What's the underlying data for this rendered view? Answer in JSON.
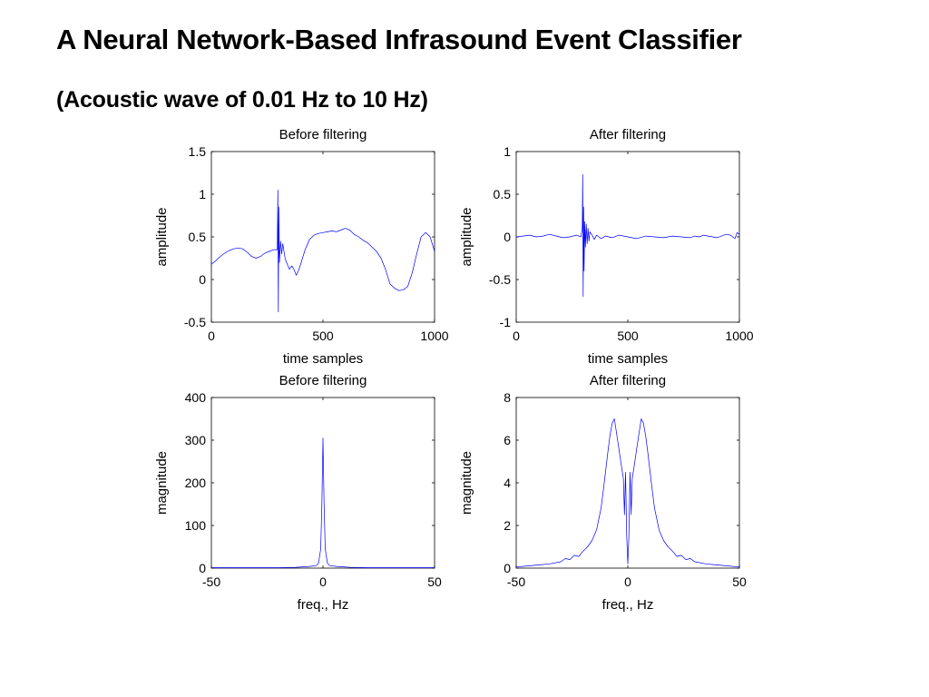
{
  "slide": {
    "title": "A Neural Network-Based Infrasound Event Classifier",
    "subtitle": "(Acoustic wave of 0.01 Hz to 10 Hz)"
  },
  "colors": {
    "trace": "#0000ff",
    "axes": "#000000",
    "background": "#ffffff"
  },
  "chart_data": [
    {
      "type": "line",
      "title": "Before filtering",
      "xlabel": "time samples",
      "ylabel": "amplitude",
      "xlim": [
        0,
        1000
      ],
      "ylim": [
        -0.5,
        1.5
      ],
      "xticks": [
        0,
        500,
        1000
      ],
      "yticks": [
        -0.5,
        0,
        0.5,
        1,
        1.5
      ],
      "ytick_labels": [
        "-0.5",
        "0",
        "0.5",
        "1",
        "1.5"
      ],
      "grid": false,
      "series": [
        {
          "x": [
            0,
            20,
            40,
            60,
            80,
            100,
            120,
            140,
            160,
            180,
            200,
            220,
            240,
            260,
            280,
            295,
            298,
            300,
            302,
            305,
            310,
            315,
            320,
            330,
            340,
            350,
            360,
            370,
            380,
            390,
            400,
            420,
            440,
            460,
            480,
            500,
            520,
            540,
            560,
            580,
            600,
            620,
            640,
            660,
            680,
            700,
            720,
            740,
            760,
            780,
            800,
            820,
            840,
            860,
            880,
            900,
            920,
            940,
            960,
            980,
            1000
          ],
          "y": [
            0.18,
            0.22,
            0.27,
            0.31,
            0.34,
            0.36,
            0.37,
            0.36,
            0.32,
            0.27,
            0.25,
            0.27,
            0.31,
            0.33,
            0.35,
            0.35,
            1.05,
            -0.38,
            0.85,
            0.2,
            0.45,
            0.3,
            0.42,
            0.25,
            0.18,
            0.12,
            0.16,
            0.12,
            0.05,
            0.1,
            0.18,
            0.35,
            0.47,
            0.52,
            0.54,
            0.55,
            0.56,
            0.57,
            0.56,
            0.58,
            0.6,
            0.58,
            0.53,
            0.5,
            0.46,
            0.43,
            0.38,
            0.33,
            0.25,
            0.12,
            -0.05,
            -0.1,
            -0.13,
            -0.12,
            -0.08,
            0.08,
            0.3,
            0.5,
            0.55,
            0.5,
            0.33
          ]
        }
      ]
    },
    {
      "type": "line",
      "title": "After filtering",
      "xlabel": "time samples",
      "ylabel": "amplitude",
      "xlim": [
        0,
        1000
      ],
      "ylim": [
        -1,
        1
      ],
      "xticks": [
        0,
        500,
        1000
      ],
      "yticks": [
        -1,
        -0.5,
        0,
        0.5,
        1
      ],
      "ytick_labels": [
        "-1",
        "-0.5",
        "0",
        "0.5",
        "1"
      ],
      "grid": false,
      "series": [
        {
          "x": [
            0,
            30,
            60,
            90,
            120,
            150,
            180,
            210,
            240,
            270,
            290,
            296,
            298,
            300,
            302,
            304,
            307,
            310,
            314,
            318,
            322,
            326,
            330,
            340,
            350,
            360,
            380,
            400,
            430,
            460,
            500,
            540,
            580,
            620,
            660,
            700,
            740,
            780,
            800,
            820,
            840,
            860,
            880,
            900,
            920,
            940,
            960,
            980,
            990,
            1000
          ],
          "y": [
            0.0,
            0.01,
            0.02,
            0.0,
            0.01,
            0.03,
            0.01,
            -0.01,
            0.0,
            0.02,
            0.0,
            0.1,
            0.73,
            -0.7,
            0.35,
            -0.4,
            0.18,
            -0.12,
            0.15,
            -0.08,
            0.1,
            -0.05,
            0.06,
            0.02,
            -0.03,
            0.02,
            -0.02,
            0.01,
            -0.01,
            0.02,
            0.0,
            -0.02,
            0.01,
            0.0,
            -0.01,
            0.01,
            0.0,
            -0.01,
            0.01,
            0.0,
            0.02,
            0.01,
            0.0,
            -0.01,
            0.01,
            0.03,
            0.02,
            -0.02,
            0.05,
            0.03
          ]
        }
      ]
    },
    {
      "type": "line",
      "title": "Before filtering",
      "xlabel": "freq., Hz",
      "ylabel": "magnitude",
      "xlim": [
        -50,
        50
      ],
      "ylim": [
        0,
        400
      ],
      "xticks": [
        -50,
        0,
        50
      ],
      "yticks": [
        0,
        100,
        200,
        300,
        400
      ],
      "ytick_labels": [
        "0",
        "100",
        "200",
        "300",
        "400"
      ],
      "grid": false,
      "series": [
        {
          "x": [
            -50,
            -40,
            -30,
            -20,
            -12,
            -6,
            -3,
            -2,
            -1,
            -0.5,
            0,
            0.5,
            1,
            2,
            3,
            6,
            12,
            20,
            30,
            40,
            50
          ],
          "y": [
            1,
            1,
            1,
            1,
            2,
            4,
            6,
            12,
            45,
            150,
            305,
            150,
            45,
            12,
            6,
            4,
            2,
            1,
            1,
            1,
            1
          ]
        }
      ]
    },
    {
      "type": "line",
      "title": "After filtering",
      "xlabel": "freq., Hz",
      "ylabel": "magnitude",
      "xlim": [
        -50,
        50
      ],
      "ylim": [
        0,
        8
      ],
      "xticks": [
        -50,
        0,
        50
      ],
      "yticks": [
        0,
        2,
        4,
        6,
        8
      ],
      "ytick_labels": [
        "0",
        "2",
        "4",
        "6",
        "8"
      ],
      "grid": false,
      "series": [
        {
          "x": [
            -50,
            -45,
            -40,
            -35,
            -30,
            -28,
            -26,
            -24,
            -22,
            -20,
            -18,
            -16,
            -14,
            -13,
            -12,
            -11,
            -10,
            -9,
            -8,
            -7,
            -6,
            -5,
            -4,
            -3,
            -2,
            -1.5,
            -1,
            -0.5,
            0,
            0.5,
            1,
            1.5,
            2,
            3,
            4,
            5,
            6,
            7,
            8,
            9,
            10,
            11,
            12,
            13,
            14,
            16,
            18,
            20,
            22,
            24,
            26,
            28,
            30,
            35,
            40,
            45,
            50
          ],
          "y": [
            0.05,
            0.1,
            0.15,
            0.2,
            0.3,
            0.45,
            0.4,
            0.6,
            0.55,
            0.8,
            1.0,
            1.3,
            1.8,
            2.3,
            2.8,
            3.6,
            4.5,
            5.4,
            6.2,
            6.8,
            7.0,
            6.3,
            5.6,
            4.9,
            4.2,
            2.5,
            4.5,
            1.5,
            0.2,
            1.5,
            4.5,
            2.5,
            4.2,
            4.9,
            5.6,
            6.3,
            7.0,
            6.8,
            6.2,
            5.4,
            4.5,
            3.6,
            2.8,
            2.3,
            1.8,
            1.3,
            1.0,
            0.8,
            0.55,
            0.6,
            0.4,
            0.45,
            0.3,
            0.2,
            0.15,
            0.1,
            0.05
          ]
        }
      ]
    }
  ]
}
